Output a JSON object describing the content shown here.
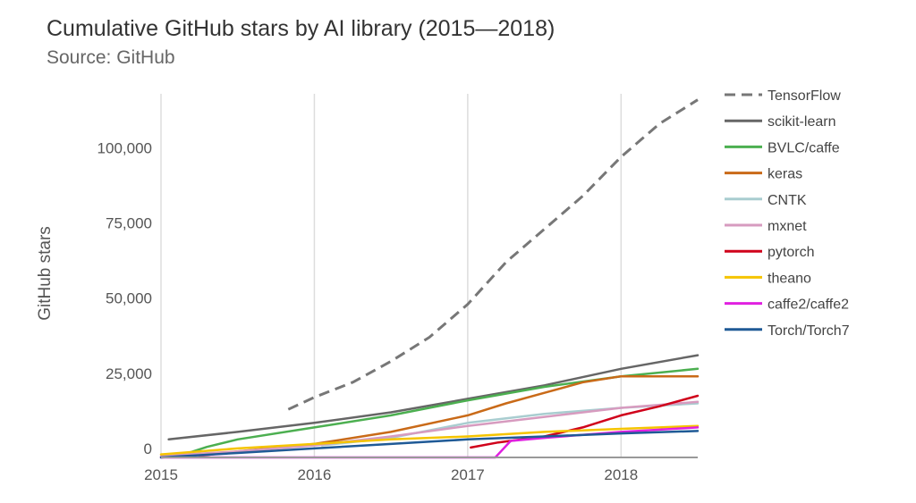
{
  "chart_data": {
    "type": "line",
    "title": "Cumulative GitHub stars by AI library (2015—2018)",
    "subtitle": "Source: GitHub",
    "xlabel": "",
    "ylabel": "GitHub stars",
    "xlim": [
      2015.0,
      2018.5
    ],
    "ylim": [
      -3000,
      118000
    ],
    "x_ticks": [
      {
        "value": 2015,
        "label": "2015"
      },
      {
        "value": 2016,
        "label": "2016"
      },
      {
        "value": 2017,
        "label": "2017"
      },
      {
        "value": 2018,
        "label": "2018"
      }
    ],
    "y_ticks": [
      {
        "value": 0,
        "label": "0"
      },
      {
        "value": 25000,
        "label": "25,000"
      },
      {
        "value": 50000,
        "label": "50,000"
      },
      {
        "value": 75000,
        "label": "75,000"
      },
      {
        "value": 100000,
        "label": "100,000"
      }
    ],
    "grid": "vertical",
    "legend_position": "right",
    "series": [
      {
        "name": "TensorFlow",
        "color": "#777777",
        "dashed": true,
        "points": [
          [
            2015.83,
            13000
          ],
          [
            2016.0,
            17000
          ],
          [
            2016.25,
            22000
          ],
          [
            2016.5,
            29000
          ],
          [
            2016.75,
            37000
          ],
          [
            2017.0,
            48000
          ],
          [
            2017.25,
            62000
          ],
          [
            2017.5,
            73000
          ],
          [
            2017.75,
            84000
          ],
          [
            2018.0,
            97000
          ],
          [
            2018.25,
            108000
          ],
          [
            2018.5,
            116000
          ]
        ]
      },
      {
        "name": "scikit-learn",
        "color": "#666666",
        "dashed": false,
        "points": [
          [
            2015.05,
            3000
          ],
          [
            2015.5,
            5500
          ],
          [
            2016.0,
            8500
          ],
          [
            2016.5,
            12000
          ],
          [
            2017.0,
            16500
          ],
          [
            2017.5,
            21000
          ],
          [
            2018.0,
            26500
          ],
          [
            2018.5,
            31000
          ]
        ]
      },
      {
        "name": "BVLC/caffe",
        "color": "#4caf50",
        "dashed": false,
        "points": [
          [
            2015.0,
            -3000
          ],
          [
            2015.15,
            -2000
          ],
          [
            2015.3,
            500
          ],
          [
            2015.5,
            3000
          ],
          [
            2016.0,
            7000
          ],
          [
            2016.5,
            11000
          ],
          [
            2017.0,
            16000
          ],
          [
            2017.5,
            20500
          ],
          [
            2018.0,
            24000
          ],
          [
            2018.5,
            26500
          ]
        ]
      },
      {
        "name": "keras",
        "color": "#c96a18",
        "dashed": false,
        "points": [
          [
            2015.25,
            -2500
          ],
          [
            2015.5,
            -1000
          ],
          [
            2016.0,
            1500
          ],
          [
            2016.5,
            5500
          ],
          [
            2017.0,
            11000
          ],
          [
            2017.25,
            15000
          ],
          [
            2017.5,
            18500
          ],
          [
            2017.75,
            22000
          ],
          [
            2018.0,
            24000
          ],
          [
            2018.5,
            24000
          ]
        ]
      },
      {
        "name": "CNTK",
        "color": "#a9cdd0",
        "dashed": false,
        "points": [
          [
            2016.05,
            1000
          ],
          [
            2016.5,
            3500
          ],
          [
            2016.75,
            6000
          ],
          [
            2017.0,
            8500
          ],
          [
            2017.5,
            11500
          ],
          [
            2018.0,
            13500
          ],
          [
            2018.5,
            15000
          ]
        ]
      },
      {
        "name": "mxnet",
        "color": "#d79bbf",
        "dashed": false,
        "points": [
          [
            2015.0,
            -2500
          ],
          [
            2015.5,
            -1000
          ],
          [
            2016.0,
            1000
          ],
          [
            2016.5,
            4000
          ],
          [
            2017.0,
            7500
          ],
          [
            2017.5,
            10500
          ],
          [
            2018.0,
            13500
          ],
          [
            2018.5,
            15500
          ]
        ]
      },
      {
        "name": "pytorch",
        "color": "#d0021b",
        "dashed": false,
        "points": [
          [
            2017.02,
            300
          ],
          [
            2017.2,
            2000
          ],
          [
            2017.5,
            4000
          ],
          [
            2017.75,
            7000
          ],
          [
            2018.0,
            11000
          ],
          [
            2018.25,
            14000
          ],
          [
            2018.5,
            17500
          ]
        ]
      },
      {
        "name": "theano",
        "color": "#f5c400",
        "dashed": false,
        "points": [
          [
            2015.0,
            -2000
          ],
          [
            2015.5,
            0
          ],
          [
            2016.0,
            1500
          ],
          [
            2016.5,
            3000
          ],
          [
            2017.0,
            4000
          ],
          [
            2017.5,
            5500
          ],
          [
            2018.0,
            6500
          ],
          [
            2018.5,
            7500
          ]
        ]
      },
      {
        "name": "caffe2/caffe2",
        "color": "#e020e0",
        "dashed": false,
        "points": [
          [
            2015.0,
            -3000
          ],
          [
            2017.18,
            -3000
          ],
          [
            2017.28,
            2500
          ],
          [
            2017.5,
            3500
          ],
          [
            2018.0,
            5500
          ],
          [
            2018.5,
            7000
          ]
        ]
      },
      {
        "name": "Torch/Torch7",
        "color": "#1f5a96",
        "dashed": false,
        "points": [
          [
            2015.0,
            -3000
          ],
          [
            2015.5,
            -1500
          ],
          [
            2016.0,
            0
          ],
          [
            2016.5,
            1500
          ],
          [
            2017.0,
            3000
          ],
          [
            2017.5,
            4000
          ],
          [
            2018.0,
            5000
          ],
          [
            2018.5,
            5800
          ]
        ]
      }
    ]
  }
}
